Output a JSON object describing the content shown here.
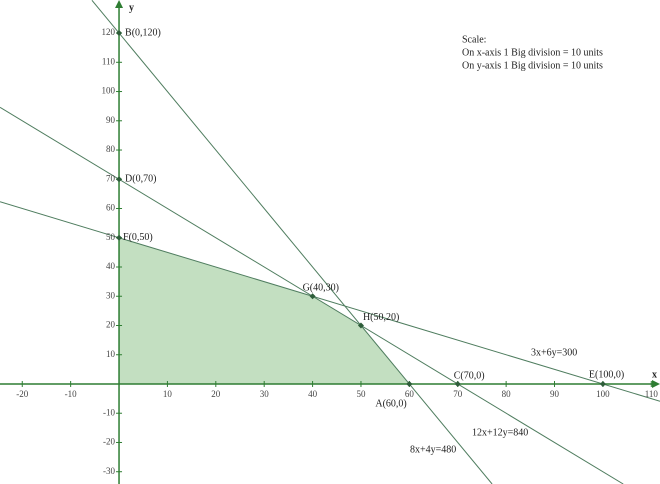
{
  "chart_data": {
    "type": "line",
    "x_label": "x",
    "y_label": "y",
    "xlim": [
      -24.6,
      111.8
    ],
    "ylim": [
      -34.2,
      131.3
    ],
    "xticks": [
      -20,
      -10,
      10,
      20,
      30,
      40,
      50,
      60,
      70,
      80,
      90,
      100,
      110
    ],
    "yticks": [
      -30,
      -20,
      -10,
      10,
      20,
      30,
      40,
      50,
      60,
      70,
      80,
      90,
      100,
      110,
      120
    ],
    "axis_color": "#2e7d32",
    "series": [
      {
        "name": "3x+6y=300",
        "color": "#4f7d5f",
        "x": [
          -24.6,
          111.8
        ],
        "y": [
          62.3,
          -5.9
        ]
      },
      {
        "name": "12x+12y=840",
        "color": "#4f7d5f",
        "x": [
          -24.6,
          104.2
        ],
        "y": [
          94.6,
          -34.2
        ]
      },
      {
        "name": "8x+4y=480",
        "color": "#4f7d5f",
        "x": [
          -5.6,
          77.1
        ],
        "y": [
          131.2,
          -34.2
        ]
      }
    ],
    "region": {
      "color": "#c3dfc1",
      "x": [
        0,
        0,
        40,
        50,
        60
      ],
      "y": [
        0,
        50,
        30,
        20,
        0
      ]
    },
    "points": [
      {
        "label": "B(0,120)",
        "x": 0,
        "y": 120
      },
      {
        "label": "D(0,70)",
        "x": 0,
        "y": 70
      },
      {
        "label": "F(0,50)",
        "x": 0,
        "y": 50
      },
      {
        "label": "G(40,30)",
        "x": 40,
        "y": 30
      },
      {
        "label": "H(50,20)",
        "x": 50,
        "y": 20
      },
      {
        "label": "C(70,0)",
        "x": 70,
        "y": 0
      },
      {
        "label": "E(100,0)",
        "x": 100,
        "y": 0
      },
      {
        "label": "A(60,0)",
        "x": 60,
        "y": 0
      }
    ],
    "annotation": [
      "Scale:",
      "On x-axis 1 Big division = 10 units",
      "On y-axis 1 Big division = 10 units"
    ]
  }
}
